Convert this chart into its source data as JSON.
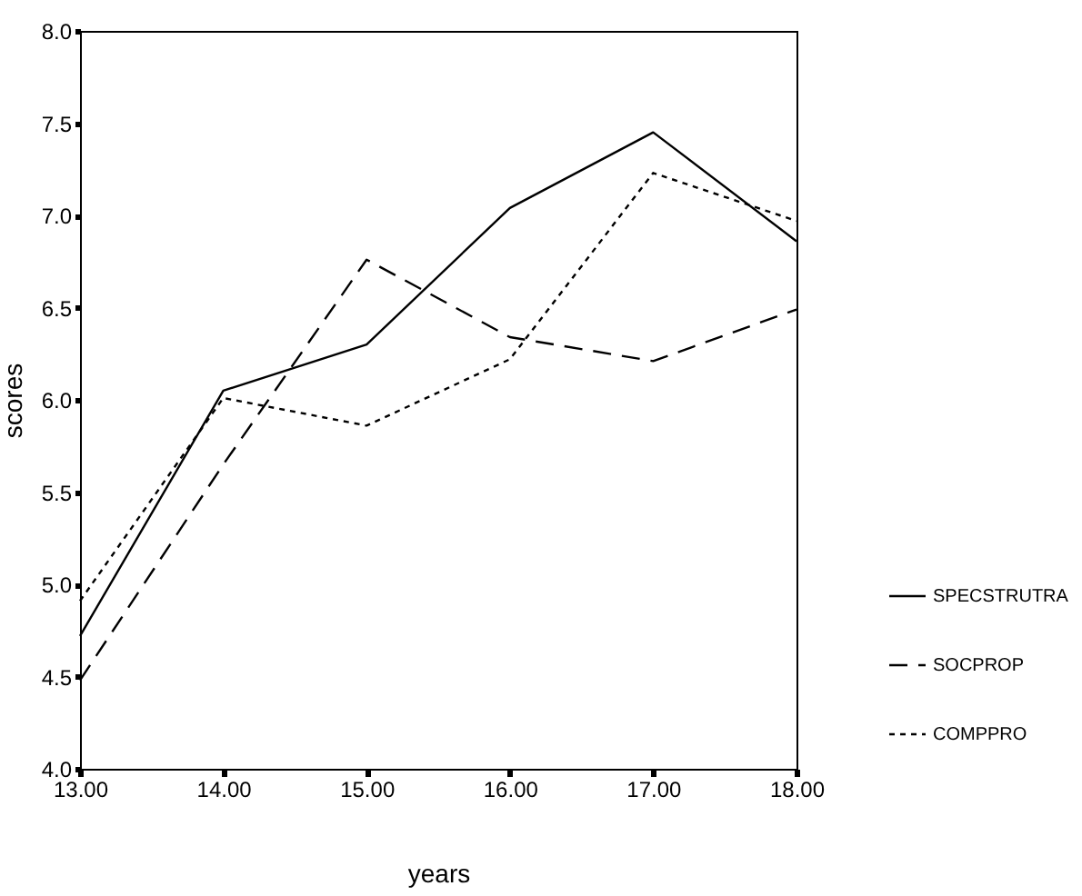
{
  "chart_data": {
    "type": "line",
    "xlabel": "years",
    "ylabel": "scores",
    "x": [
      13,
      14,
      15,
      16,
      17,
      18
    ],
    "series": [
      {
        "name": "SPECSTRUTRA",
        "color": "#000000",
        "line_style": "solid",
        "values": [
          4.72,
          6.05,
          6.3,
          7.04,
          7.45,
          6.86
        ]
      },
      {
        "name": "SOCPROP",
        "color": "#000000",
        "line_style": "dashed",
        "values": [
          4.48,
          5.65,
          6.76,
          6.34,
          6.21,
          6.49
        ]
      },
      {
        "name": "COMPPRO",
        "color": "#000000",
        "line_style": "dotted",
        "values": [
          4.91,
          6.01,
          5.86,
          6.22,
          7.23,
          6.97
        ]
      }
    ],
    "xlim": [
      13,
      18
    ],
    "xticks": [
      {
        "value": 13,
        "label": "13.00"
      },
      {
        "value": 14,
        "label": "14.00"
      },
      {
        "value": 15,
        "label": "15.00"
      },
      {
        "value": 16,
        "label": "16.00"
      },
      {
        "value": 17,
        "label": "17.00"
      },
      {
        "value": 18,
        "label": "18.00"
      }
    ],
    "ylim": [
      4,
      8
    ],
    "yticks": [
      {
        "value": 4,
        "label": "4.0"
      },
      {
        "value": 4.5,
        "label": "4.5"
      },
      {
        "value": 5,
        "label": "5.0"
      },
      {
        "value": 5.5,
        "label": "5.5"
      },
      {
        "value": 6,
        "label": "6.0"
      },
      {
        "value": 6.5,
        "label": "6.5"
      },
      {
        "value": 7,
        "label": "7.0"
      },
      {
        "value": 7.5,
        "label": "7.5"
      },
      {
        "value": 8,
        "label": "8.0"
      }
    ],
    "grid": false,
    "legend": "bottom right",
    "marker": "none"
  }
}
